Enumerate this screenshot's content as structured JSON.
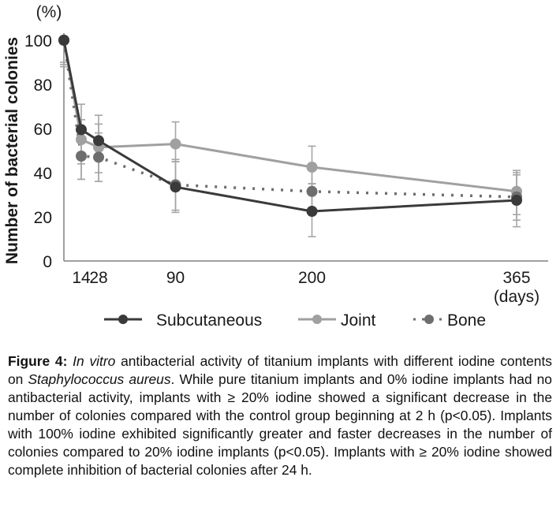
{
  "chart_data": {
    "type": "line",
    "title": "",
    "xlabel": "(days)",
    "ylabel": "Number of bacterial colonies",
    "yunit": "(%)",
    "ylim": [
      0,
      100
    ],
    "xlim": [
      0,
      365
    ],
    "yticks": [
      0,
      20,
      40,
      60,
      80,
      100
    ],
    "xticks": [
      14,
      28,
      90,
      200,
      365
    ],
    "grid": false,
    "legend_position": "bottom",
    "x": [
      0,
      14,
      28,
      90,
      200,
      365
    ],
    "series": [
      {
        "name": "Subcutaneous",
        "color": "#3a3a3a",
        "line_style": "solid",
        "values": [
          100,
          59.5,
          54.5,
          33.5,
          22.5,
          27.5
        ],
        "err_low": [
          90,
          37,
          36,
          22,
          11,
          15.5
        ],
        "err_high": [
          100,
          71,
          66,
          45,
          35,
          39
        ]
      },
      {
        "name": "Joint",
        "color": "#a0a0a0",
        "line_style": "solid",
        "values": [
          100,
          55,
          51.5,
          53,
          42.5,
          31.5
        ],
        "err_low": [
          88,
          44,
          40,
          45,
          35,
          21
        ],
        "err_high": [
          100,
          64,
          62,
          63,
          52,
          41
        ]
      },
      {
        "name": "Bone",
        "color": "#6e6e6e",
        "line_style": "dotted",
        "values": [
          100,
          47.5,
          47,
          34.5,
          31.5,
          29
        ],
        "err_low": [
          89,
          37,
          36,
          23,
          22,
          18.5
        ],
        "err_high": [
          100,
          58,
          58,
          46,
          41,
          40
        ]
      }
    ]
  },
  "caption": {
    "label": "Figure 4:",
    "part1_italic": "In vitro",
    "part2": " antibacterial activity of titanium implants with different iodine contents on ",
    "part3_italic": "Staphylococcus aureus",
    "part4": ". While pure titanium implants and 0% iodine implants had no antibacterial activity, implants with ≥ 20% iodine showed a significant decrease in the number of colonies compared with the control group beginning at 2 h (p<0.05). Implants with 100% iodine exhibited significantly greater and faster decreases in the number of colonies compared to 20% iodine implants (p<0.05). Implants with ≥ 20% iodine showed complete inhibition of bacterial colonies after 24 h."
  }
}
